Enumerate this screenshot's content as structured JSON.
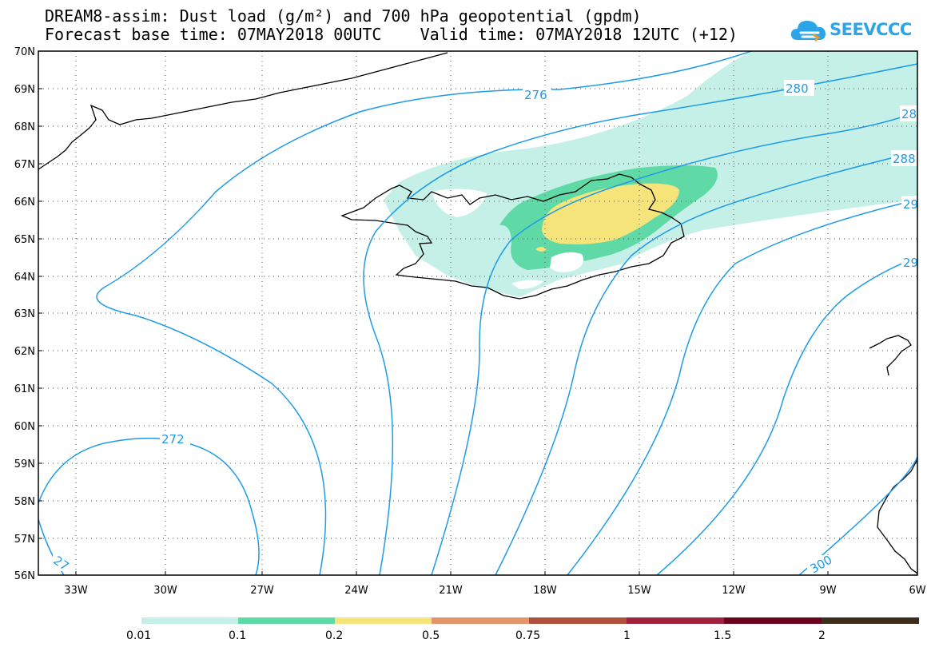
{
  "title": {
    "line1": "DREAM8-assim: Dust load (g/m²) and 700 hPa geopotential (gpdm)",
    "line2": "Forecast base time: 07MAY2018 00UTC    Valid time: 07MAY2018 12UTC (+12)"
  },
  "logo": {
    "text": "SEEVCCC"
  },
  "axes": {
    "lat_labels": [
      "70N",
      "69N",
      "68N",
      "67N",
      "66N",
      "65N",
      "64N",
      "63N",
      "62N",
      "61N",
      "60N",
      "59N",
      "58N",
      "57N",
      "56N"
    ],
    "lon_labels": [
      "33W",
      "30W",
      "27W",
      "24W",
      "21W",
      "18W",
      "15W",
      "12W",
      "9W",
      "6W"
    ]
  },
  "contours": {
    "labels": [
      "276",
      "280",
      "28",
      "288",
      "29",
      "29",
      "272",
      "27",
      "300"
    ],
    "color": "#1e9be8"
  },
  "colorbar": {
    "colors": [
      "#c4f0e8",
      "#5fd9a6",
      "#f4e47a",
      "#e4936a",
      "#b0503f",
      "#a0213c",
      "#6e0020",
      "#3c2d1a",
      "#9a70a8"
    ],
    "labels": [
      "0.01",
      "0.1",
      "0.2",
      "0.5",
      "0.75",
      "1",
      "1.5",
      "2"
    ]
  }
}
